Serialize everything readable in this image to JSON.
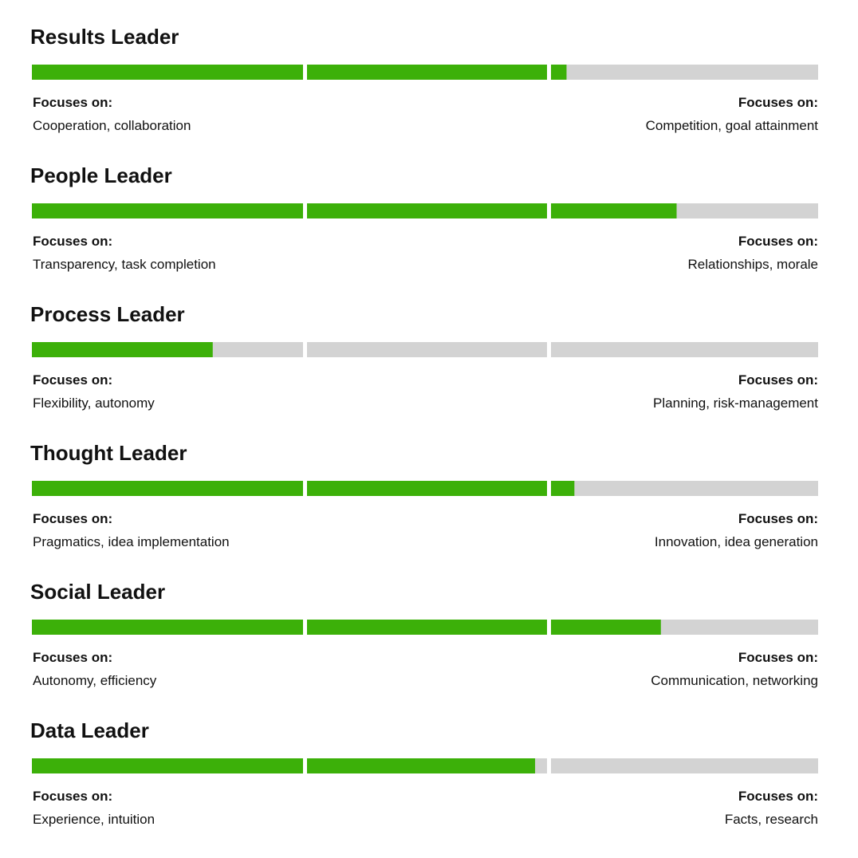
{
  "xlim": [
    0,
    100
  ],
  "fill_color": "#3cb009",
  "track_color": "#d3d3d3",
  "items": [
    {
      "title": "Results Leader",
      "value": 68,
      "left": {
        "label": "Focuses on:",
        "text": "Cooperation, collaboration"
      },
      "right": {
        "label": "Focuses on:",
        "text": "Competition, goal attainment"
      }
    },
    {
      "title": "People Leader",
      "value": 82,
      "left": {
        "label": "Focuses on:",
        "text": "Transparency, task completion"
      },
      "right": {
        "label": "Focuses on:",
        "text": "Relationships, morale"
      }
    },
    {
      "title": "Process Leader",
      "value": 23,
      "left": {
        "label": "Focuses on:",
        "text": "Flexibility, autonomy"
      },
      "right": {
        "label": "Focuses on:",
        "text": "Planning, risk-management"
      }
    },
    {
      "title": "Thought Leader",
      "value": 69,
      "left": {
        "label": "Focuses on:",
        "text": "Pragmatics, idea implementation"
      },
      "right": {
        "label": "Focuses on:",
        "text": "Innovation, idea generation"
      }
    },
    {
      "title": "Social Leader",
      "value": 80,
      "left": {
        "label": "Focuses on:",
        "text": "Autonomy, efficiency"
      },
      "right": {
        "label": "Focuses on:",
        "text": "Communication, networking"
      }
    },
    {
      "title": "Data Leader",
      "value": 64,
      "left": {
        "label": "Focuses on:",
        "text": "Experience, intuition"
      },
      "right": {
        "label": "Focuses on:",
        "text": "Facts, research"
      }
    }
  ]
}
